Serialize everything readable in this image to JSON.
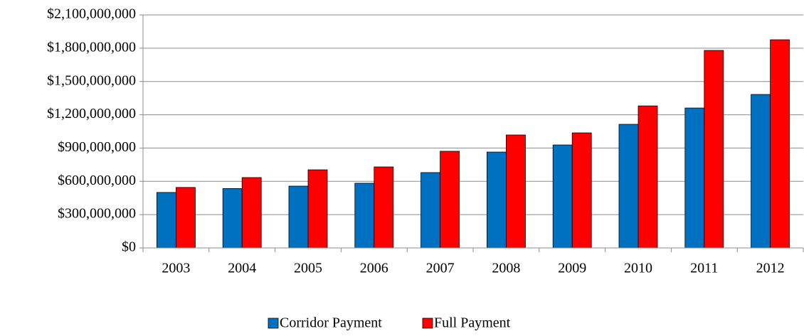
{
  "chart_data": {
    "type": "bar",
    "categories": [
      "2003",
      "2004",
      "2005",
      "2006",
      "2007",
      "2008",
      "2009",
      "2010",
      "2011",
      "2012"
    ],
    "series": [
      {
        "name": "Corridor Payment",
        "color": "#0070c0",
        "values": [
          500000000,
          535000000,
          557000000,
          583000000,
          679000000,
          864000000,
          928000000,
          1114000000,
          1261000000,
          1383000000
        ]
      },
      {
        "name": "Full Payment",
        "color": "#ff0000",
        "values": [
          545000000,
          634000000,
          704000000,
          730000000,
          871000000,
          1018000000,
          1037000000,
          1280000000,
          1780000000,
          1876000000
        ]
      }
    ],
    "ylim": [
      0,
      2100000000
    ],
    "yticks": [
      {
        "value": 0,
        "label": "$0"
      },
      {
        "value": 300000000,
        "label": "$300,000,000"
      },
      {
        "value": 600000000,
        "label": "$600,000,000"
      },
      {
        "value": 900000000,
        "label": "$900,000,000"
      },
      {
        "value": 1200000000,
        "label": "$1,200,000,000"
      },
      {
        "value": 1500000000,
        "label": "$1,500,000,000"
      },
      {
        "value": 1800000000,
        "label": "$1,800,000,000"
      },
      {
        "value": 2100000000,
        "label": "$2,100,000,000"
      }
    ],
    "grid": true,
    "legend": "bottom"
  }
}
